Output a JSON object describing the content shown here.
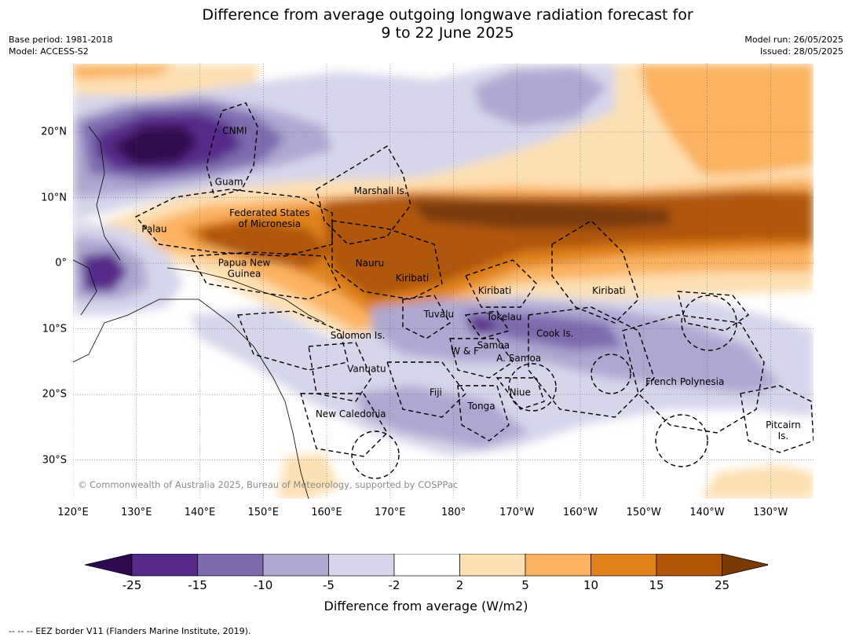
{
  "title_line1": "Difference from average outgoing longwave radiation forecast for",
  "title_line2": "9 to 22 June 2025",
  "meta": {
    "base_period": "Base period: 1981-2018",
    "model": "Model: ACCESS-S2",
    "model_run": "Model run: 26/05/2025",
    "issued": "Issued: 28/05/2025"
  },
  "map": {
    "lon_labels": [
      "120°E",
      "130°E",
      "140°E",
      "150°E",
      "160°E",
      "170°E",
      "180°",
      "170°W",
      "160°W",
      "150°W",
      "140°W",
      "130°W"
    ],
    "lat_labels": [
      "20°N",
      "10°N",
      "0°",
      "10°S",
      "20°S",
      "30°S"
    ],
    "copyright": "© Commonwealth of Australia 2025, Bureau of Meteorology, supported by COSPPac",
    "regions": [
      {
        "name": "CNMI",
        "lon": 145.5,
        "lat": 20.2
      },
      {
        "name": "Guam",
        "lon": 144.6,
        "lat": 12.4
      },
      {
        "name": "Marshall Is.",
        "lon": 168.5,
        "lat": 11.0
      },
      {
        "name": "Federated States\nof Micronesia",
        "lon": 151.0,
        "lat": 6.8
      },
      {
        "name": "Palau",
        "lon": 132.8,
        "lat": 5.2
      },
      {
        "name": "Papua New\nGuinea",
        "lon": 147.0,
        "lat": -0.8
      },
      {
        "name": "Nauru",
        "lon": 166.8,
        "lat": 0.0
      },
      {
        "name": "Kiribati",
        "lon": 173.5,
        "lat": -2.3
      },
      {
        "name": "Kiribati",
        "lon": -173.5,
        "lat": -4.2
      },
      {
        "name": "Kiribati",
        "lon": -155.5,
        "lat": -4.2
      },
      {
        "name": "Tuvalu",
        "lon": 177.7,
        "lat": -7.8
      },
      {
        "name": "Tokelau",
        "lon": -172.0,
        "lat": -8.2
      },
      {
        "name": "Cook Is.",
        "lon": -164.0,
        "lat": -10.7
      },
      {
        "name": "Solomon Is.",
        "lon": 164.9,
        "lat": -11.0
      },
      {
        "name": "Samoa",
        "lon": -173.7,
        "lat": -12.5
      },
      {
        "name": "W & F",
        "lon": -178.2,
        "lat": -13.4
      },
      {
        "name": "A. Samoa",
        "lon": -169.7,
        "lat": -14.5
      },
      {
        "name": "Vanuatu",
        "lon": 166.3,
        "lat": -16.1
      },
      {
        "name": "French Polynesia",
        "lon": -143.5,
        "lat": -18.1
      },
      {
        "name": "Fiji",
        "lon": 177.2,
        "lat": -19.7
      },
      {
        "name": "Niue",
        "lon": -169.5,
        "lat": -19.7
      },
      {
        "name": "Tonga",
        "lon": -175.6,
        "lat": -21.8
      },
      {
        "name": "New Caledonia",
        "lon": 163.8,
        "lat": -23.0
      },
      {
        "name": "Pitcairn\nIs.",
        "lon": -128.0,
        "lat": -25.5
      }
    ]
  },
  "colorbar": {
    "title": "Difference from average (W/m2)",
    "ticks": [
      "-25",
      "-15",
      "-10",
      "-5",
      "-2",
      "2",
      "5",
      "10",
      "15",
      "25"
    ],
    "colors": [
      "#2d0a4e",
      "#562a8a",
      "#7d6aad",
      "#aea7d0",
      "#d6d5ea",
      "#ffffff",
      "#fde0b4",
      "#fbb360",
      "#e0821c",
      "#b05607",
      "#7a3a08"
    ]
  },
  "footer": "--  --  -- EEZ border V11 (Flanders Marine Institute, 2019)."
}
